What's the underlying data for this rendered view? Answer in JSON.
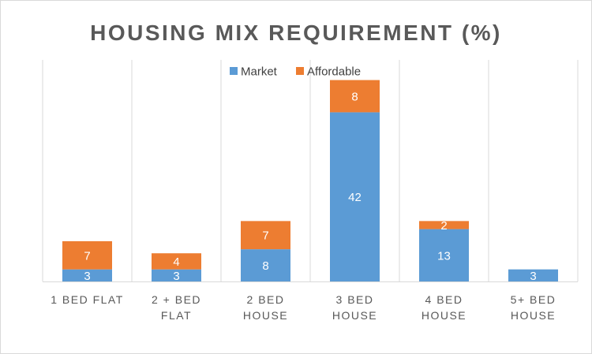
{
  "chart_data": {
    "type": "bar",
    "stacked": true,
    "title": "HOUSING MIX REQUIREMENT (%)",
    "categories": [
      "1 BED FLAT",
      "2 + BED FLAT",
      "2 BED HOUSE",
      "3 BED HOUSE",
      "4 BED HOUSE",
      "5+ BED HOUSE"
    ],
    "series": [
      {
        "name": "Market",
        "color": "#5b9bd5",
        "values": [
          3,
          3,
          8,
          42,
          13,
          3
        ]
      },
      {
        "name": "Affordable",
        "color": "#ed7d31",
        "values": [
          7,
          4,
          7,
          8,
          2,
          null
        ]
      }
    ],
    "ylim": [
      0,
      55
    ],
    "grid": "vertical separators",
    "legend_position": "top"
  }
}
